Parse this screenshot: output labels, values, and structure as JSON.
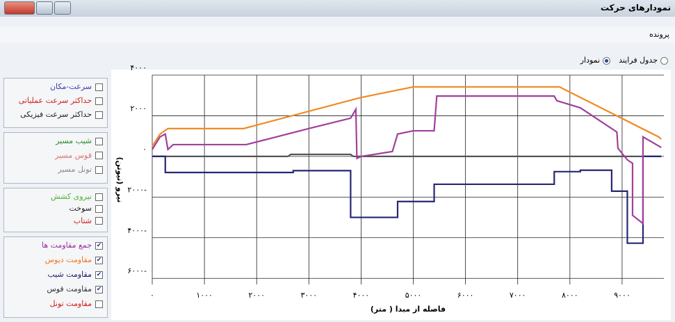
{
  "window": {
    "title": "نمودارهای حرکت",
    "menu": "پرونده",
    "views": [
      {
        "label": "جدول فرایند",
        "selected": false
      },
      {
        "label": "نمودار",
        "selected": true
      }
    ]
  },
  "panel": {
    "groups": [
      [
        {
          "label": "سرعت-مکان",
          "checked": false,
          "color": "#3a3ab0"
        },
        {
          "label": "حداکثر سرعت عملیاتی",
          "checked": false,
          "color": "#d02020"
        },
        {
          "label": "حداکثر سرعت فیزیکی",
          "checked": false,
          "color": "#222222"
        }
      ],
      [
        {
          "label": "شیب مسیر",
          "checked": false,
          "color": "#2a8a2a"
        },
        {
          "label": "قوس مسیر",
          "checked": false,
          "color": "#e07070"
        },
        {
          "label": "تونل مسیر",
          "checked": false,
          "color": "#888888"
        }
      ],
      [
        {
          "label": "نیروی کشش",
          "checked": false,
          "color": "#50b030"
        },
        {
          "label": "سوخت",
          "checked": false,
          "color": "#222222"
        },
        {
          "label": "شتاب",
          "checked": false,
          "color": "#d02020"
        }
      ],
      [
        {
          "label": "جمع مقاومت ها",
          "checked": true,
          "color": "#9a2a9a"
        },
        {
          "label": "مقاومت دیوس",
          "checked": true,
          "color": "#f07820"
        },
        {
          "label": "مقاومت شیب",
          "checked": true,
          "color": "#1a1a6a"
        },
        {
          "label": "مقاومت قوس",
          "checked": true,
          "color": "#333333"
        },
        {
          "label": "مقاومت تونل",
          "checked": false,
          "color": "#d02020"
        }
      ]
    ]
  },
  "chart_data": {
    "type": "line",
    "x_label": "فاصله از مبدا ( متر)",
    "y_label": "نیرو (نیوتن)",
    "grid": true,
    "xlim": [
      0,
      9800
    ],
    "ylim": [
      -6300,
      4000
    ],
    "xticks": [
      {
        "value": 0,
        "label": "۰"
      },
      {
        "value": 1000,
        "label": "۱۰۰۰"
      },
      {
        "value": 2000,
        "label": "۲۰۰۰"
      },
      {
        "value": 3000,
        "label": "۳۰۰۰"
      },
      {
        "value": 4000,
        "label": "۴۰۰۰"
      },
      {
        "value": 5000,
        "label": "۵۰۰۰"
      },
      {
        "value": 6000,
        "label": "۶۰۰۰"
      },
      {
        "value": 7000,
        "label": "۷۰۰۰"
      },
      {
        "value": 8000,
        "label": "۸۰۰۰"
      },
      {
        "value": 9000,
        "label": "۹۰۰۰"
      }
    ],
    "yticks": [
      {
        "value": 4000,
        "label": "۴۰۰۰"
      },
      {
        "value": 2000,
        "label": "۲۰۰۰"
      },
      {
        "value": 0,
        "label": "۰"
      },
      {
        "value": -2000,
        "label": "۲۰۰۰-"
      },
      {
        "value": -4000,
        "label": "۴۰۰۰-"
      },
      {
        "value": -6000,
        "label": "۶۰۰۰-"
      }
    ],
    "series": [
      {
        "name": "مقاومت دیوس",
        "color": "#f08a24",
        "x": [
          0,
          150,
          300,
          1750,
          4000,
          5000,
          7800,
          9700,
          9750
        ],
        "values": [
          500,
          1100,
          1370,
          1370,
          2900,
          3420,
          3420,
          960,
          850
        ]
      },
      {
        "name": "مقاومت قوس",
        "color": "#555555",
        "x": [
          0,
          2600,
          2650,
          3800,
          3850,
          9750
        ],
        "values": [
          0,
          0,
          100,
          100,
          0,
          0
        ]
      },
      {
        "name": "مقاومت شیب",
        "color": "#262673",
        "x": [
          0,
          250,
          250,
          2700,
          2700,
          3800,
          3800,
          4700,
          4700,
          5400,
          5400,
          7700,
          7700,
          8200,
          8200,
          8800,
          8800,
          9100,
          9100,
          9400,
          9400,
          9750
        ],
        "values": [
          0,
          0,
          -790,
          -790,
          -700,
          -700,
          -3000,
          -3000,
          -2220,
          -2220,
          -1370,
          -1370,
          -750,
          -750,
          -680,
          -680,
          -1710,
          -1710,
          -4270,
          -4270,
          0,
          0
        ]
      },
      {
        "name": "جمع مقاومت ها",
        "color": "#a0409a",
        "x": [
          0,
          150,
          250,
          300,
          400,
          1800,
          3000,
          3800,
          3900,
          3920,
          4000,
          4600,
          4700,
          5000,
          5400,
          5450,
          7700,
          7750,
          8200,
          8600,
          8900,
          8920,
          9100,
          9200,
          9200,
          9400,
          9400,
          9750
        ],
        "values": [
          340,
          960,
          1100,
          340,
          580,
          580,
          1370,
          1880,
          2320,
          -100,
          0,
          240,
          1100,
          1260,
          1260,
          2970,
          2970,
          2740,
          2390,
          1710,
          1200,
          400,
          -170,
          -340,
          -2900,
          -3300,
          960,
          440
        ]
      }
    ]
  }
}
